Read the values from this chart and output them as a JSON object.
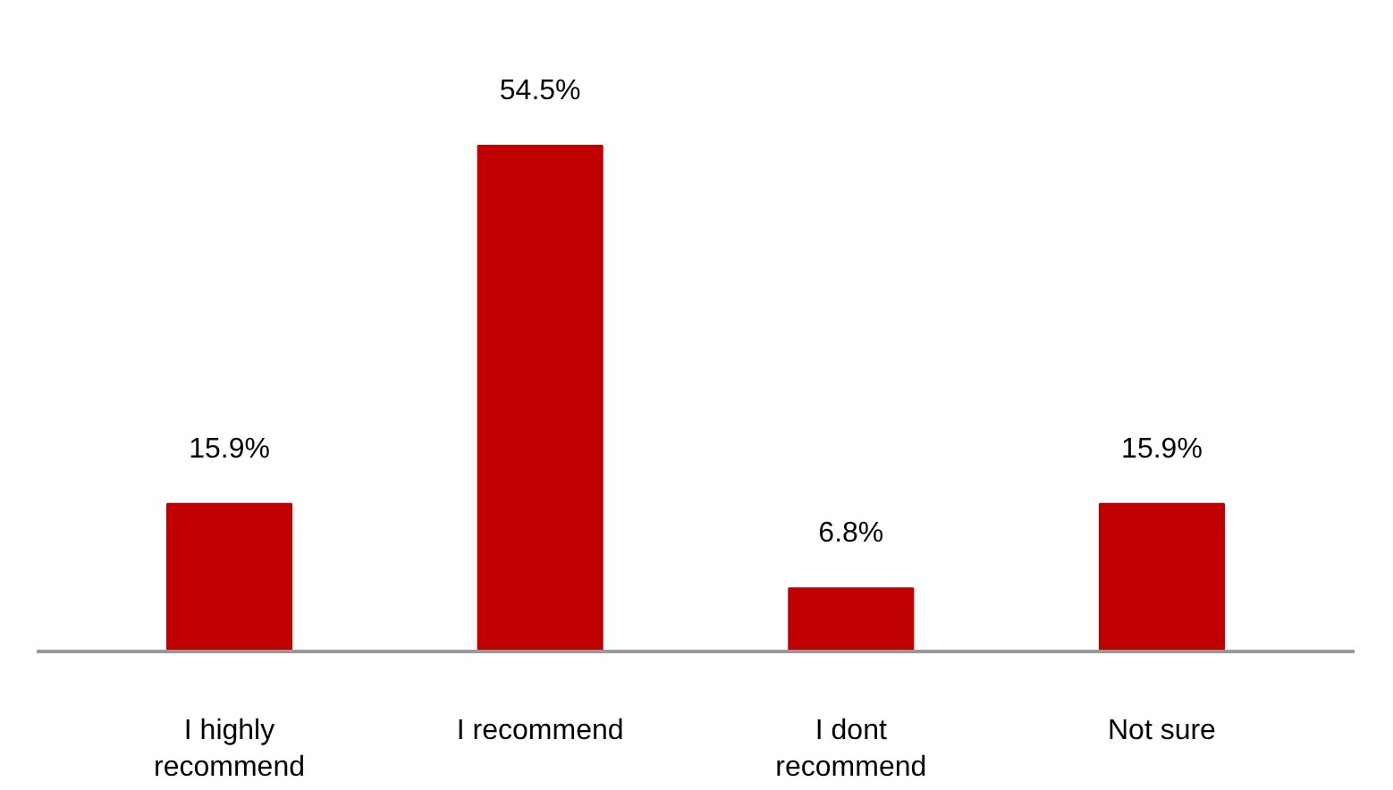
{
  "chart_data": {
    "type": "bar",
    "categories": [
      "I highly recommend",
      "I recommend",
      "I dont recommend",
      "Not sure"
    ],
    "values": [
      15.9,
      54.5,
      6.8,
      15.9
    ],
    "color": "#c00000",
    "value_labels": [
      "15.9%",
      "54.5%",
      "6.8%",
      "15.9%"
    ]
  }
}
